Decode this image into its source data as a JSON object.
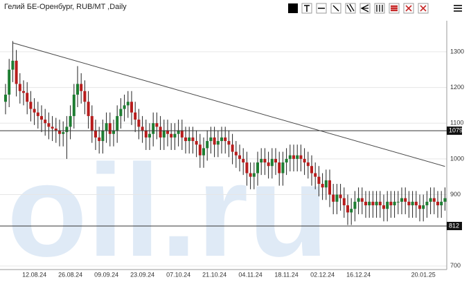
{
  "chart_data": {
    "type": "candlestick",
    "title": "Гелий БЕ-Оренбург, RUB/MT ,Daily",
    "watermark": "oil.ru",
    "categories": [
      null,
      null,
      null,
      null,
      null,
      null,
      null,
      null,
      "12.08.24",
      null,
      null,
      null,
      null,
      null,
      null,
      null,
      null,
      null,
      "26.08.24",
      null,
      null,
      null,
      null,
      null,
      null,
      null,
      null,
      null,
      "09.09.24",
      null,
      null,
      null,
      null,
      null,
      null,
      null,
      null,
      null,
      "23.09.24",
      null,
      null,
      null,
      null,
      null,
      null,
      null,
      null,
      null,
      "07.10.24",
      null,
      null,
      null,
      null,
      null,
      null,
      null,
      null,
      null,
      "21.10.24",
      null,
      null,
      null,
      null,
      null,
      null,
      null,
      null,
      null,
      "04.11.24",
      null,
      null,
      null,
      null,
      null,
      null,
      null,
      null,
      null,
      "18.11.24",
      null,
      null,
      null,
      null,
      null,
      null,
      null,
      null,
      null,
      "02.12.24",
      null,
      null,
      null,
      null,
      null,
      null,
      null,
      null,
      null,
      "16.12.24",
      null,
      null,
      null,
      null,
      null,
      null,
      null,
      null,
      null,
      null,
      null,
      null,
      null,
      null,
      null,
      null,
      null,
      "20.01.25",
      null,
      null,
      null,
      null,
      null,
      null
    ],
    "open": [
      1160,
      1180,
      1250,
      1275,
      1210,
      1190,
      1185,
      1160,
      1140,
      1130,
      1120,
      1110,
      1100,
      1090,
      1085,
      1080,
      1070,
      1075,
      1090,
      1120,
      1180,
      1210,
      1190,
      1160,
      1120,
      1080,
      1060,
      1050,
      1080,
      1100,
      1070,
      1080,
      1120,
      1140,
      1150,
      1160,
      1130,
      1110,
      1090,
      1080,
      1060,
      1070,
      1100,
      1090,
      1060,
      1080,
      1070,
      1060,
      1070,
      1080,
      1060,
      1050,
      1060,
      1050,
      1040,
      1010,
      1030,
      1050,
      1060,
      1040,
      1050,
      1060,
      1050,
      1040,
      1020,
      1010,
      1000,
      990,
      960,
      950,
      960,
      990,
      1000,
      990,
      980,
      1000,
      990,
      960,
      990,
      1000,
      1010,
      1000,
      1010,
      1000,
      990,
      980,
      960,
      950,
      930,
      920,
      940,
      900,
      880,
      900,
      890,
      870,
      850,
      860,
      880,
      890,
      880,
      870,
      880,
      870,
      880,
      870,
      860,
      880,
      870,
      880,
      880,
      890,
      880,
      870,
      880,
      870,
      860,
      870,
      880,
      890,
      880,
      870,
      880
    ],
    "high": [
      1210,
      1280,
      1330,
      1305,
      1240,
      1220,
      1215,
      1190,
      1170,
      1160,
      1150,
      1140,
      1130,
      1120,
      1115,
      1110,
      1105,
      1120,
      1150,
      1210,
      1260,
      1240,
      1220,
      1190,
      1150,
      1110,
      1090,
      1110,
      1130,
      1130,
      1110,
      1150,
      1170,
      1180,
      1190,
      1190,
      1160,
      1140,
      1120,
      1110,
      1100,
      1130,
      1130,
      1120,
      1110,
      1110,
      1100,
      1100,
      1110,
      1110,
      1090,
      1090,
      1090,
      1080,
      1070,
      1060,
      1080,
      1090,
      1090,
      1080,
      1090,
      1090,
      1080,
      1070,
      1050,
      1040,
      1030,
      1020,
      990,
      990,
      1020,
      1030,
      1030,
      1020,
      1030,
      1030,
      1020,
      1020,
      1030,
      1040,
      1040,
      1040,
      1040,
      1030,
      1020,
      1010,
      990,
      980,
      960,
      970,
      970,
      930,
      930,
      930,
      920,
      900,
      890,
      910,
      920,
      920,
      910,
      910,
      910,
      910,
      910,
      900,
      910,
      910,
      910,
      910,
      920,
      920,
      910,
      910,
      910,
      900,
      900,
      910,
      920,
      920,
      910,
      910,
      920
    ],
    "low": [
      1125,
      1145,
      1215,
      1175,
      1155,
      1150,
      1125,
      1105,
      1095,
      1085,
      1075,
      1065,
      1055,
      1050,
      1045,
      1035,
      1035,
      1000,
      1055,
      1085,
      1145,
      1155,
      1125,
      1085,
      1045,
      1025,
      1015,
      1015,
      1045,
      1035,
      1035,
      1045,
      1085,
      1105,
      1115,
      1095,
      1075,
      1055,
      1045,
      1025,
      1025,
      1035,
      1055,
      1025,
      1025,
      1035,
      1025,
      1025,
      1035,
      1025,
      1015,
      1015,
      1015,
      1005,
      975,
      975,
      995,
      1015,
      1005,
      1005,
      1015,
      1015,
      1005,
      985,
      975,
      965,
      955,
      925,
      915,
      915,
      925,
      955,
      955,
      945,
      945,
      955,
      925,
      925,
      955,
      965,
      965,
      965,
      965,
      955,
      945,
      925,
      915,
      895,
      885,
      885,
      865,
      845,
      845,
      855,
      835,
      815,
      815,
      825,
      845,
      845,
      835,
      835,
      835,
      835,
      835,
      825,
      825,
      835,
      835,
      845,
      845,
      845,
      835,
      835,
      835,
      825,
      825,
      835,
      845,
      845,
      835,
      835,
      855
    ],
    "close": [
      1180,
      1250,
      1275,
      1210,
      1190,
      1185,
      1160,
      1140,
      1130,
      1120,
      1110,
      1100,
      1090,
      1085,
      1080,
      1070,
      1075,
      1090,
      1120,
      1180,
      1210,
      1190,
      1160,
      1120,
      1080,
      1060,
      1050,
      1080,
      1100,
      1070,
      1080,
      1120,
      1140,
      1150,
      1160,
      1130,
      1110,
      1090,
      1080,
      1060,
      1070,
      1100,
      1090,
      1060,
      1080,
      1070,
      1060,
      1070,
      1080,
      1060,
      1050,
      1060,
      1050,
      1040,
      1010,
      1030,
      1050,
      1060,
      1040,
      1050,
      1060,
      1050,
      1040,
      1020,
      1010,
      1000,
      990,
      960,
      950,
      960,
      990,
      1000,
      990,
      980,
      1000,
      990,
      960,
      990,
      1000,
      1010,
      1000,
      1010,
      1000,
      990,
      980,
      960,
      950,
      930,
      920,
      940,
      900,
      880,
      900,
      890,
      870,
      850,
      860,
      880,
      890,
      880,
      870,
      880,
      870,
      880,
      870,
      860,
      880,
      870,
      880,
      880,
      890,
      880,
      870,
      880,
      870,
      860,
      870,
      880,
      890,
      880,
      870,
      880,
      890
    ],
    "up_color": "#1e7d32",
    "down_color": "#b71c1c",
    "ylim": [
      690,
      1387
    ],
    "yticks": [
      700,
      900,
      1000,
      1100,
      1200,
      1300
    ],
    "grid": true,
    "hlines": [
      1079,
      812
    ],
    "trendline": {
      "x": [
        2,
        122
      ],
      "y": [
        1325,
        979
      ]
    }
  }
}
